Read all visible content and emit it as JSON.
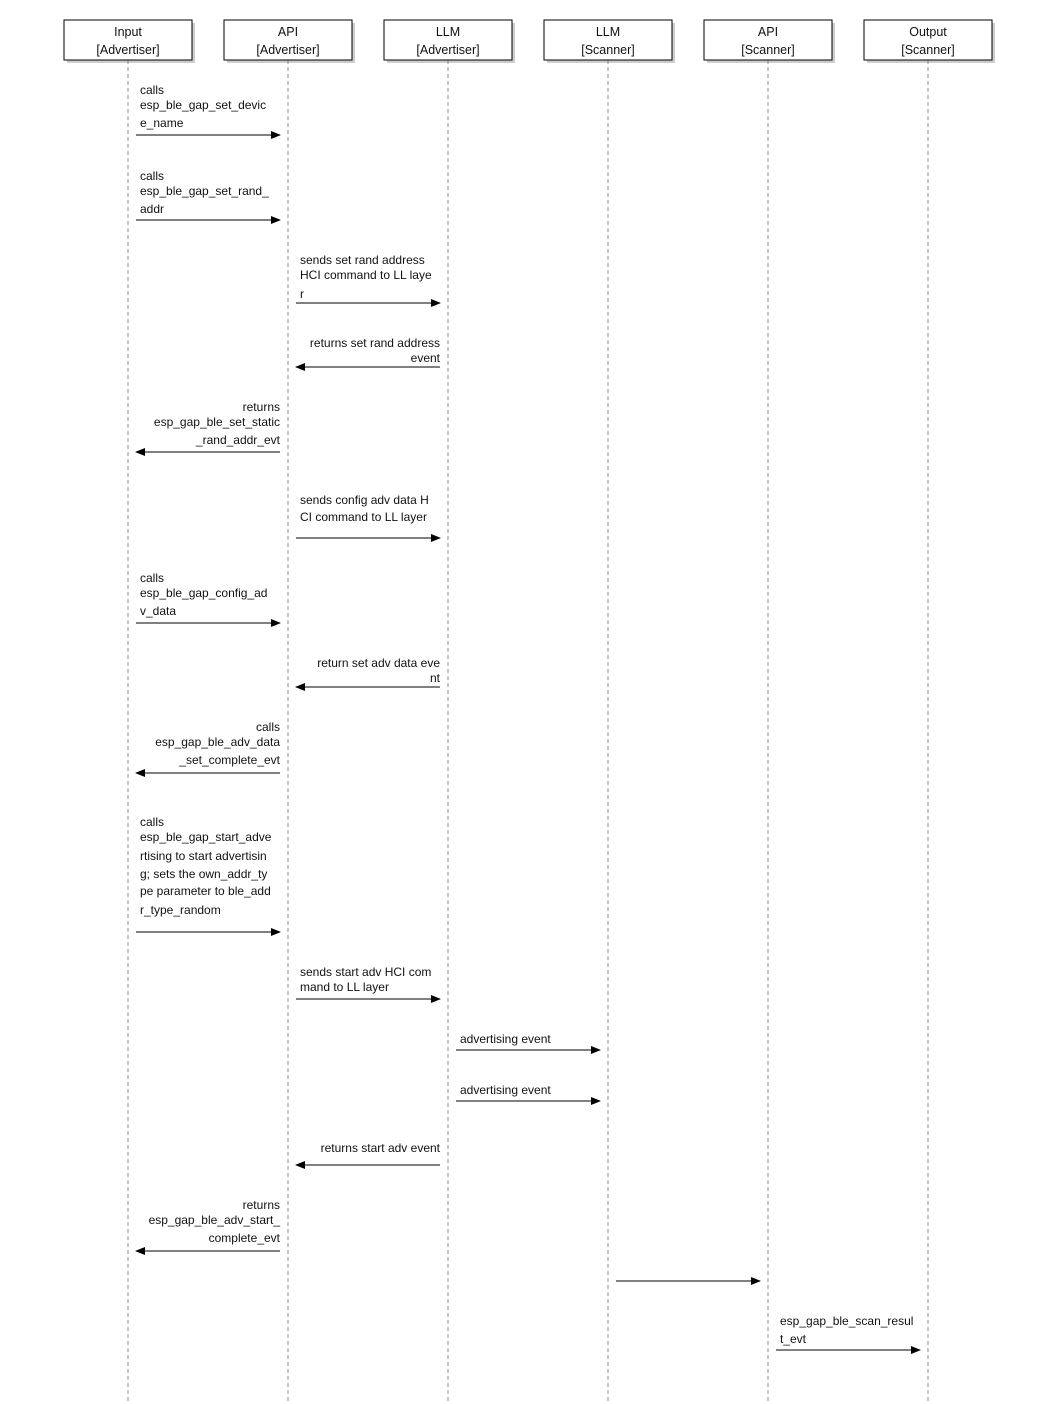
{
  "participants": [
    {
      "name": "Input",
      "role": "[Advertiser]"
    },
    {
      "name": "API",
      "role": "[Advertiser]"
    },
    {
      "name": "LLM",
      "role": "[Advertiser]"
    },
    {
      "name": "LLM",
      "role": "[Scanner]"
    },
    {
      "name": "API",
      "role": "[Scanner]"
    },
    {
      "name": "Output",
      "role": "[Scanner]"
    }
  ],
  "messages": [
    {
      "from": 0,
      "to": 1,
      "lines": [
        "calls",
        "esp_ble_gap_set_devic",
        "e_name"
      ]
    },
    {
      "from": 0,
      "to": 1,
      "lines": [
        "calls",
        "esp_ble_gap_set_rand_",
        "addr"
      ]
    },
    {
      "from": 1,
      "to": 2,
      "lines": [
        "sends set rand address",
        "HCI command to LL laye",
        "r"
      ]
    },
    {
      "from": 2,
      "to": 1,
      "lines": [
        "returns set rand address",
        "event"
      ]
    },
    {
      "from": 1,
      "to": 0,
      "lines": [
        "returns",
        "esp_gap_ble_set_static",
        "_rand_addr_evt"
      ]
    },
    {
      "from": 1,
      "to": 2,
      "lines": [
        "sends config adv data H",
        "CI command to LL layer"
      ]
    },
    {
      "from": 0,
      "to": 1,
      "lines": [
        "calls",
        "esp_ble_gap_config_ad",
        "v_data"
      ]
    },
    {
      "from": 2,
      "to": 1,
      "lines": [
        "return set adv data eve",
        "nt"
      ]
    },
    {
      "from": 1,
      "to": 0,
      "lines": [
        "calls",
        "esp_gap_ble_adv_data",
        "_set_complete_evt"
      ]
    },
    {
      "from": 0,
      "to": 1,
      "lines": [
        "calls",
        "esp_ble_gap_start_adve",
        "rtising to start advertisin",
        "g; sets the own_addr_ty",
        "pe parameter to ble_add",
        "r_type_random"
      ]
    },
    {
      "from": 1,
      "to": 2,
      "lines": [
        "sends start adv HCI com",
        "mand to LL layer"
      ]
    },
    {
      "from": 2,
      "to": 3,
      "lines": [
        "advertising event"
      ]
    },
    {
      "from": 2,
      "to": 3,
      "lines": [
        "advertising event"
      ]
    },
    {
      "from": 2,
      "to": 1,
      "lines": [
        "returns start adv event"
      ]
    },
    {
      "from": 1,
      "to": 0,
      "lines": [
        "returns",
        "esp_gap_ble_adv_start_",
        "complete_evt"
      ]
    },
    {
      "from": 3,
      "to": 4,
      "lines": []
    },
    {
      "from": 4,
      "to": 5,
      "lines": [
        "esp_gap_ble_scan_resul",
        "t_evt"
      ]
    }
  ]
}
